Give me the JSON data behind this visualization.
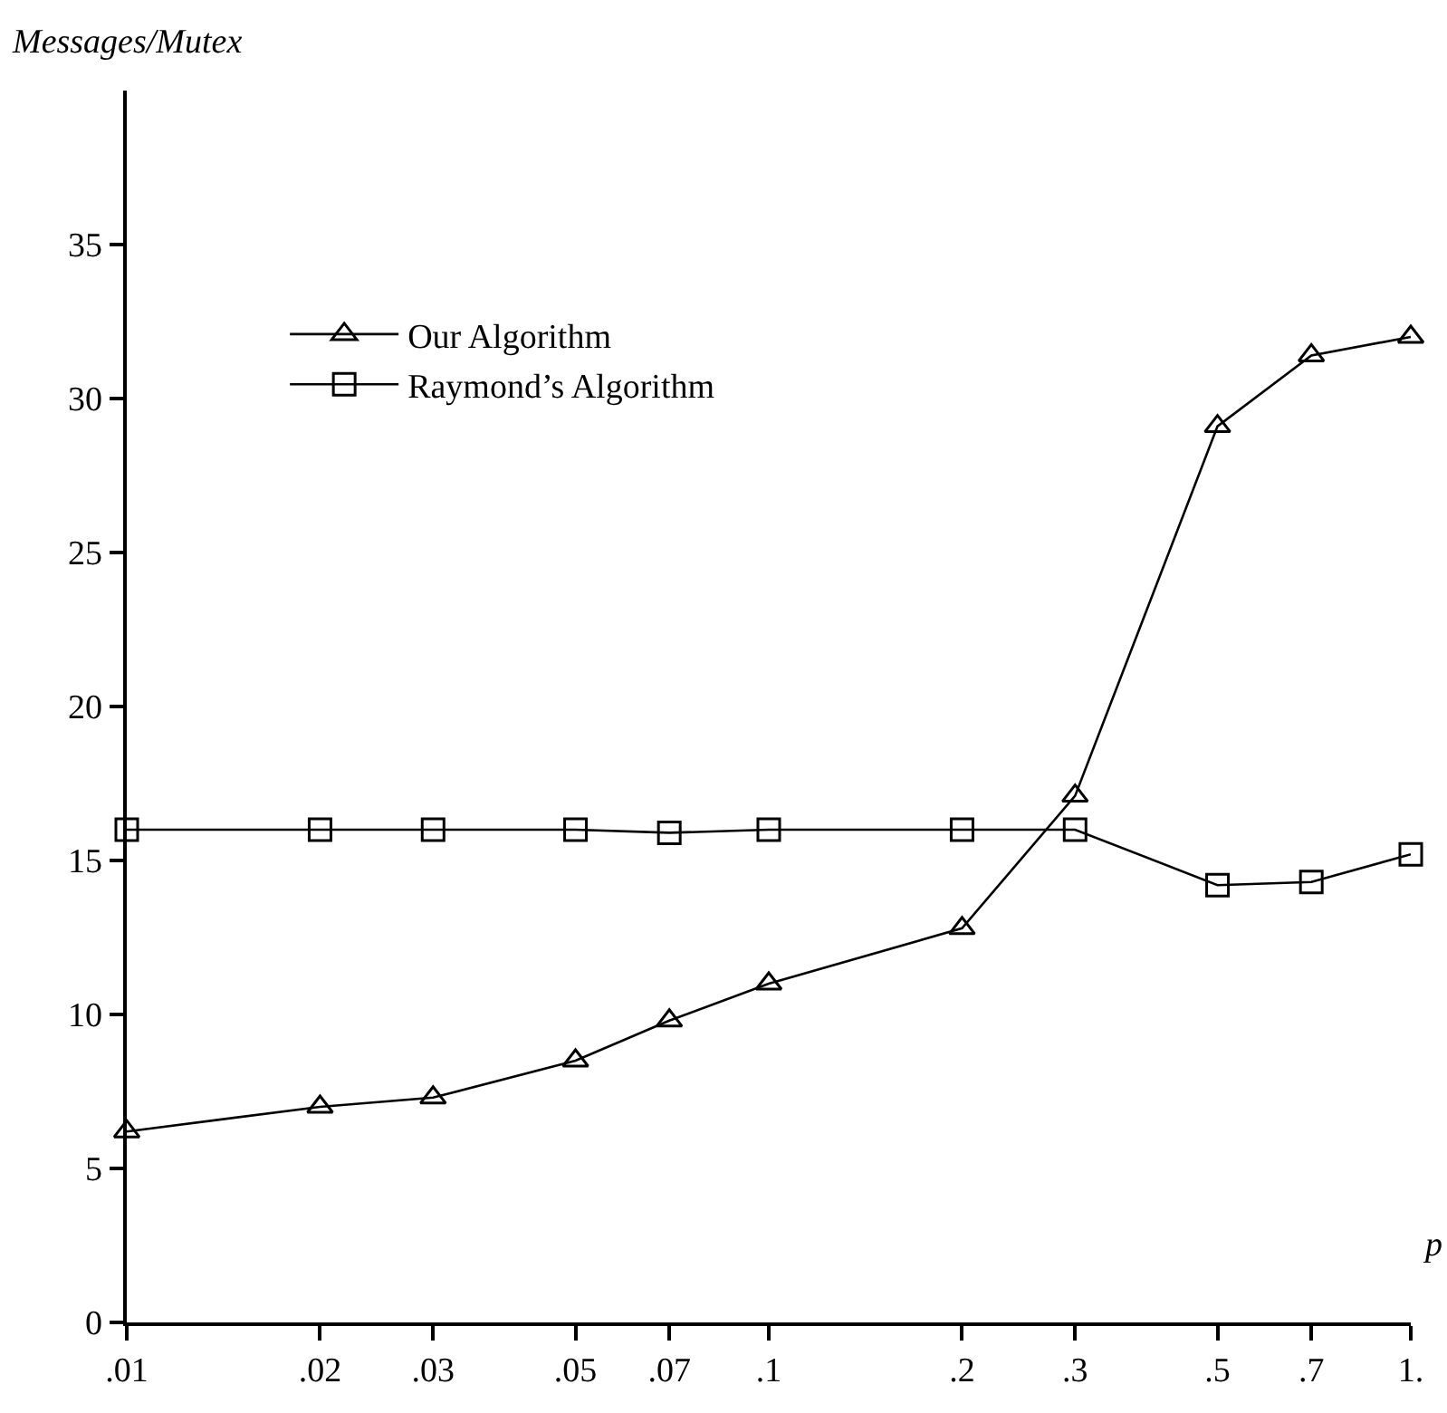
{
  "chart_data": {
    "type": "line",
    "ylabel": "Messages/Mutex",
    "xlabel": "p",
    "x": [
      0.01,
      0.02,
      0.03,
      0.05,
      0.07,
      0.1,
      0.2,
      0.3,
      0.5,
      0.7,
      1
    ],
    "log": "x",
    "xlim": [
      0.01,
      1
    ],
    "xticks": [
      {
        "value": 0.01,
        "label": ".01"
      },
      {
        "value": 0.02,
        "label": ".02"
      },
      {
        "value": 0.03,
        "label": ".03"
      },
      {
        "value": 0.05,
        "label": ".05"
      },
      {
        "value": 0.07,
        "label": ".07"
      },
      {
        "value": 0.1,
        "label": ".1"
      },
      {
        "value": 0.2,
        "label": ".2"
      },
      {
        "value": 0.3,
        "label": ".3"
      },
      {
        "value": 0.5,
        "label": ".5"
      },
      {
        "value": 0.7,
        "label": ".7"
      },
      {
        "value": 1,
        "label": "1."
      }
    ],
    "ylim": [
      0,
      40
    ],
    "yticks": [
      0,
      5,
      10,
      15,
      20,
      25,
      30,
      35
    ],
    "grid": false,
    "legend": "top left",
    "line_style": "solid",
    "series": [
      {
        "name": "Our Algorithm",
        "color": "#000000",
        "marker": "triangle",
        "values": [
          6.2,
          7.0,
          7.3,
          8.5,
          9.8,
          11.0,
          12.8,
          17.1,
          29.1,
          31.4,
          32.0
        ]
      },
      {
        "name": "Raymond’s Algorithm",
        "color": "#000000",
        "marker": "square",
        "values": [
          16,
          16,
          16,
          16,
          15.9,
          16,
          16,
          16,
          14.2,
          14.3,
          15.2
        ]
      }
    ]
  }
}
